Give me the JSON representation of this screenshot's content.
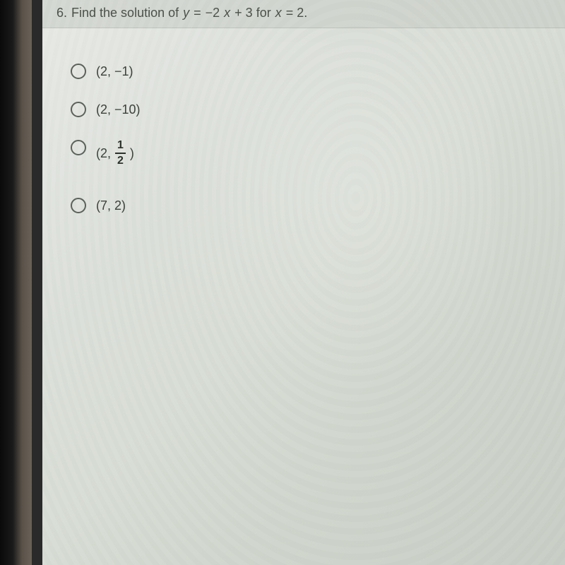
{
  "question": {
    "number": "6.",
    "prefix": "Find the solution of",
    "var_y": "y",
    "eq": "=",
    "expr": "−2",
    "var_x1": "x",
    "plus": "+ 3 for",
    "var_x2": "x",
    "eq2": "= 2."
  },
  "options": {
    "a": "(2, −1)",
    "b": "(2, −10)",
    "c_open": "(2,",
    "c_num": "1",
    "c_den": "2",
    "c_close": ")",
    "d": "(7, 2)"
  },
  "colors": {
    "text": "#4a4f48",
    "option_text": "#3a3f38",
    "radio_border": "#5a5f58",
    "screen_bg": "#dce0da"
  }
}
